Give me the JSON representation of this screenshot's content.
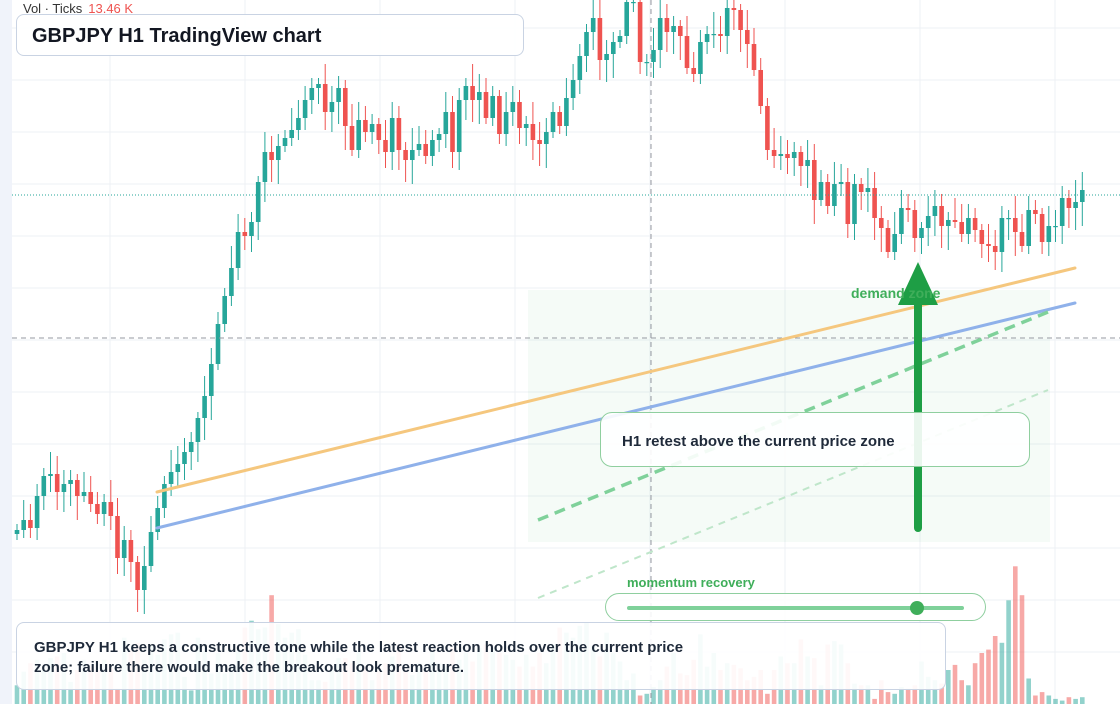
{
  "title": "GBPJPY H1 TradingView chart",
  "volume_legend": {
    "label": "Vol · Ticks",
    "value": "13.46 K"
  },
  "annotations": {
    "zone_label": "demand zone",
    "callout": "H1 retest above the current price zone",
    "momentum_label": "momentum recovery",
    "momentum_level": 0.86
  },
  "summary": "GBPJPY H1 keeps a constructive tone while the latest reaction holds over the current price zone; failure there would make the breakout look premature.",
  "colors": {
    "up": "#26a69a",
    "down": "#ef5350",
    "trendline_orange": "#f5c77e",
    "trendline_blue": "#8fb1ea",
    "zone_green": "#3fae5a",
    "arrow": "#1e9e45"
  },
  "chart_data": {
    "type": "candlestick",
    "series": [
      {
        "name": "price",
        "closes": [
          41,
          46,
          42,
          58,
          68,
          69,
          60,
          64,
          66,
          58,
          60,
          54,
          49,
          55,
          48,
          27,
          36,
          25,
          11,
          23,
          40,
          52,
          64,
          70,
          74,
          80,
          85,
          97,
          108,
          124,
          144,
          158,
          172,
          190,
          188,
          195,
          215,
          230,
          226,
          233,
          237,
          241,
          247,
          256,
          262,
          264,
          250,
          255,
          262,
          243,
          231,
          246,
          240,
          244,
          236,
          230,
          247,
          231,
          226,
          231,
          234,
          228,
          236,
          239,
          250,
          230,
          256,
          263,
          256,
          260,
          247,
          258,
          239,
          250,
          255,
          242,
          244,
          236,
          234,
          240,
          250,
          243,
          257,
          266,
          278,
          290,
          297,
          276,
          279,
          285,
          288,
          305,
          305,
          275,
          275,
          281,
          297,
          290,
          293,
          288,
          272,
          269,
          285,
          289,
          289,
          288,
          302,
          301,
          291,
          284,
          271,
          253,
          231,
          228,
          229,
          227,
          230,
          223,
          226,
          206,
          215,
          203,
          214,
          215,
          194,
          214,
          210,
          212,
          197,
          192,
          180,
          189,
          202,
          201,
          187,
          192,
          198,
          203,
          193,
          196,
          195,
          189,
          197,
          191,
          184,
          183,
          180,
          197,
          197,
          190,
          183,
          201,
          199,
          185,
          193,
          193,
          207,
          202,
          205,
          211
        ]
      }
    ],
    "volume": [
      11,
      19,
      24,
      26,
      20,
      27,
      28,
      30,
      13,
      20,
      26,
      22,
      20,
      26,
      21,
      9,
      39,
      32,
      36,
      26,
      35,
      29,
      38,
      41,
      42,
      16,
      8,
      39,
      31,
      18,
      30,
      18,
      23,
      31,
      45,
      49,
      44,
      45,
      64,
      47,
      39,
      42,
      44,
      29,
      14,
      14,
      13,
      20,
      27,
      27,
      24,
      31,
      22,
      14,
      19,
      24,
      28,
      35,
      20,
      17,
      24,
      19,
      31,
      24,
      22,
      33,
      26,
      30,
      25,
      33,
      35,
      33,
      30,
      29,
      26,
      22,
      29,
      22,
      30,
      24,
      35,
      45,
      42,
      39,
      46,
      48,
      34,
      28,
      42,
      30,
      25,
      14,
      18,
      5,
      6,
      10,
      14,
      22,
      30,
      18,
      17,
      26,
      41,
      22,
      30,
      20,
      24,
      23,
      21,
      14,
      16,
      20,
      6,
      20,
      28,
      24,
      24,
      38,
      28,
      27,
      11,
      35,
      37,
      35,
      24,
      12,
      11,
      11,
      3,
      14,
      7,
      6,
      10,
      9,
      11,
      25,
      16,
      14,
      12,
      20,
      23,
      14,
      11,
      24,
      30,
      32,
      40,
      36,
      61,
      81,
      64,
      15,
      5,
      7,
      5,
      3,
      2,
      4,
      3,
      4
    ]
  }
}
